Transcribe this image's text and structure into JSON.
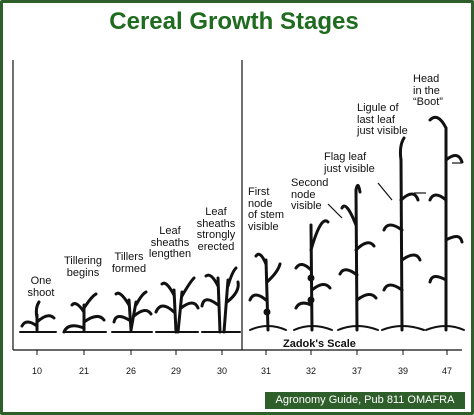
{
  "title": "Cereal Growth Stages",
  "stages": [
    {
      "label": "One\nshoot"
    },
    {
      "label": "Tillering\nbegins"
    },
    {
      "label": "Tillers\nformed"
    },
    {
      "label": "Leaf\nsheaths\nlengthen"
    },
    {
      "label": "Leaf\nsheaths\nstrongly\nerected"
    },
    {
      "label": "First\nnode\nof stem\nvisible"
    },
    {
      "label": "Second\nnode\nvisible"
    },
    {
      "label": "Flag leaf\njust visible"
    },
    {
      "label": "Ligule of\nlast leaf\njust visible"
    },
    {
      "label": "Head\nin the\n“Boot”"
    }
  ],
  "scale": {
    "title": "Zadok's Scale",
    "ticks": [
      "10",
      "21",
      "26",
      "29",
      "30",
      "31",
      "32",
      "37",
      "39",
      "47"
    ]
  },
  "footer": "Agronomy Guide, Pub 811 OMAFRA",
  "colors": {
    "title": "#1f6b1f",
    "frame": "#2e5e2a",
    "plant": "#111111"
  }
}
